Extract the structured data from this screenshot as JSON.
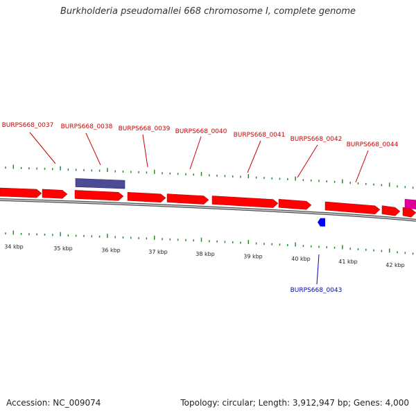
{
  "title": "Burkholderia pseudomallei 668 chromosome I, complete genome",
  "footer": {
    "accession": "Accession: NC_009074",
    "summary": "Topology: circular; Length: 3,912,947 bp; Genes: 4,000"
  },
  "colors": {
    "forward_gene": "#ff0000",
    "reverse_gene": "#0000ff",
    "label_forward": "#cc0000",
    "label_reverse": "#0000cc",
    "feature_purple": "#4b4b96",
    "feature_pink": "#e0009a",
    "backbone": "#888888",
    "tick": "#2a8a2a"
  },
  "scale": {
    "unit": "kbp",
    "ticks": [
      {
        "value": 34,
        "label": "34 kbp"
      },
      {
        "value": 35,
        "label": "35 kbp"
      },
      {
        "value": 36,
        "label": "36 kbp"
      },
      {
        "value": 37,
        "label": "37 kbp"
      },
      {
        "value": 38,
        "label": "38 kbp"
      },
      {
        "value": 39,
        "label": "39 kbp"
      },
      {
        "value": 40,
        "label": "40 kbp"
      },
      {
        "value": 41,
        "label": "41 kbp"
      },
      {
        "value": 42,
        "label": "42 kbp"
      }
    ]
  },
  "genes": [
    {
      "id": "BURPS668_0037",
      "label": "BURPS668_0037",
      "strand": "+"
    },
    {
      "id": "BURPS668_0038",
      "label": "BURPS668_0038",
      "strand": "+"
    },
    {
      "id": "BURPS668_0039",
      "label": "BURPS668_0039",
      "strand": "+"
    },
    {
      "id": "BURPS668_0040",
      "label": "BURPS668_0040",
      "strand": "+"
    },
    {
      "id": "BURPS668_0041",
      "label": "BURPS668_0041",
      "strand": "+"
    },
    {
      "id": "BURPS668_0042",
      "label": "BURPS668_0042",
      "strand": "+"
    },
    {
      "id": "BURPS668_0043",
      "label": "BURPS668_0043",
      "strand": "-"
    },
    {
      "id": "BURPS668_0044",
      "label": "BURPS668_0044",
      "strand": "+"
    }
  ]
}
